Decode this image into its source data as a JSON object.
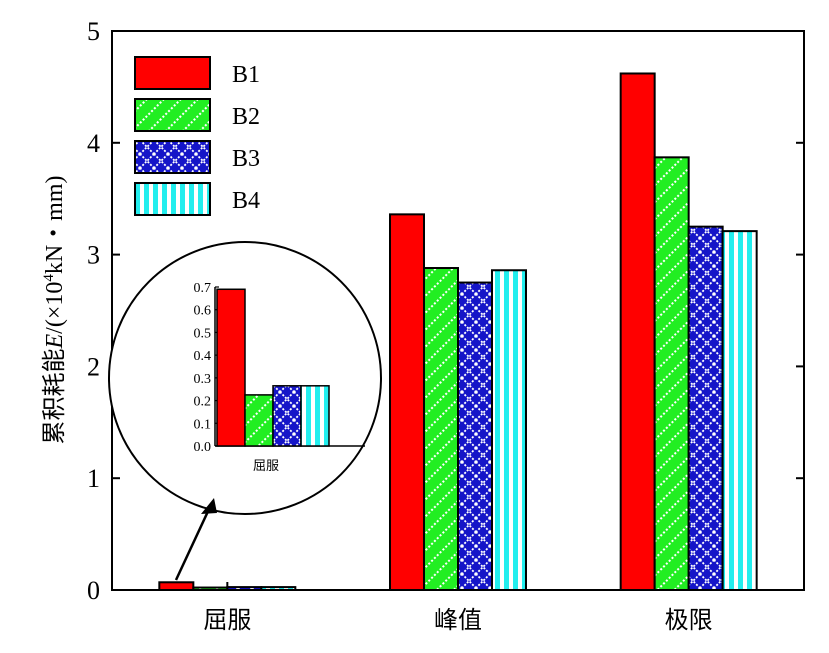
{
  "chart_data": {
    "type": "bar",
    "categories": [
      "屈服",
      "峰值",
      "极限"
    ],
    "ylabel_prefix": "累积耗能",
    "ylabel_var": "E",
    "ylabel_unit_start": "/(×10",
    "ylabel_exp": "4",
    "ylabel_unit_end": "kN・mm)",
    "ylim": [
      0,
      5
    ],
    "yticks": [
      "0",
      "1",
      "2",
      "3",
      "4",
      "5"
    ],
    "grid": false,
    "legend_position": "top-left",
    "series": [
      {
        "name": "B1",
        "values": [
          0.069,
          3.36,
          4.62
        ],
        "color": "#ff0000",
        "pattern": "solid"
      },
      {
        "name": "B2",
        "values": [
          0.022,
          2.88,
          3.87
        ],
        "color": "#22ee22",
        "pattern": "diagonal-stripes"
      },
      {
        "name": "B3",
        "values": [
          0.026,
          2.75,
          3.25
        ],
        "color": "#1515c8",
        "pattern": "crosshatch"
      },
      {
        "name": "B4",
        "values": [
          0.026,
          2.86,
          3.21
        ],
        "color": "#22eeee",
        "pattern": "vertical-stripes"
      }
    ],
    "inset": {
      "category": "屈服",
      "ylim": [
        0,
        0.7
      ],
      "yticks": [
        "0.0",
        "0.1",
        "0.2",
        "0.3",
        "0.4",
        "0.5",
        "0.6",
        "0.7"
      ],
      "values": [
        0.69,
        0.225,
        0.265,
        0.265
      ]
    }
  }
}
